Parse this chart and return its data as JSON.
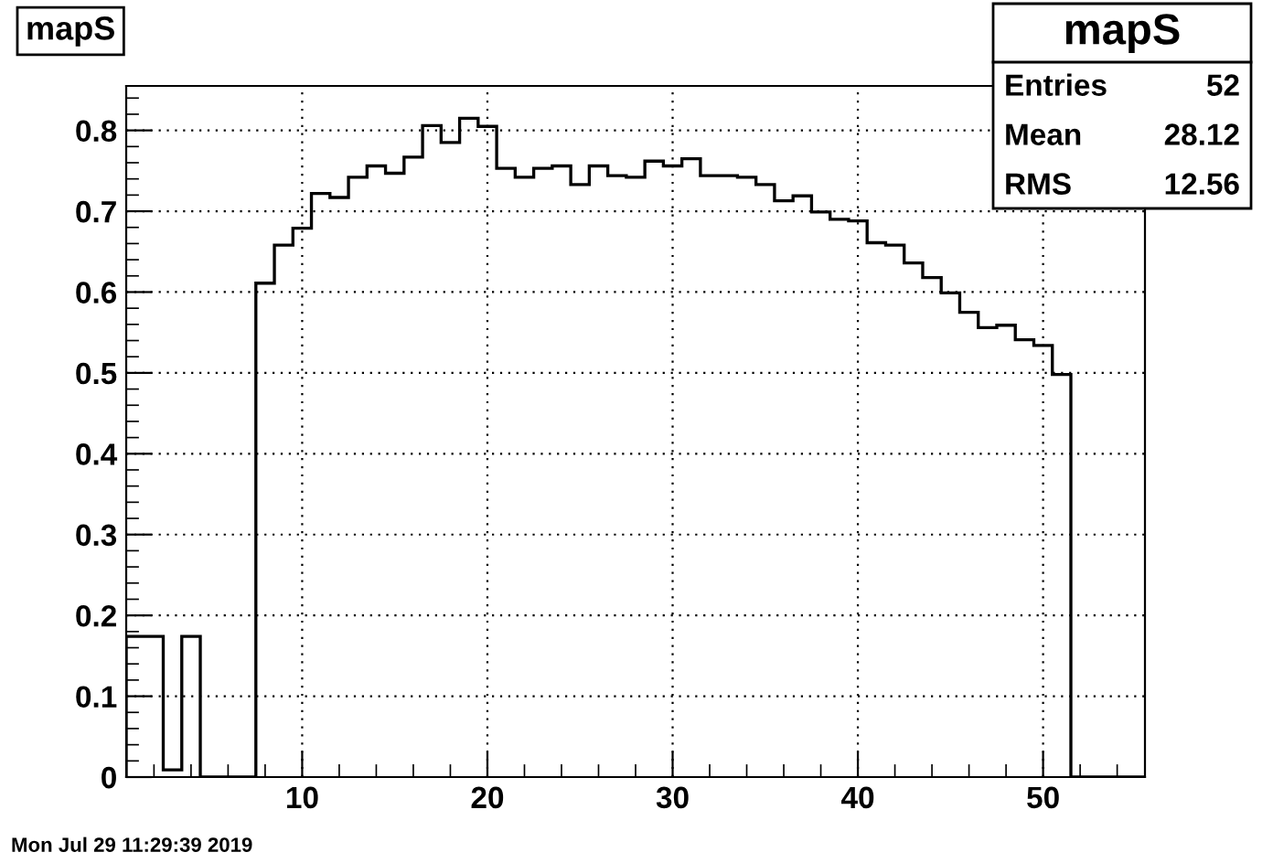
{
  "chart_data": {
    "type": "histogram",
    "title": "mapS",
    "bins": [
      0.5,
      1.5,
      2.5,
      3.5,
      4.5,
      5.5,
      6.5,
      7.5,
      8.5,
      9.5,
      10.5,
      11.5,
      12.5,
      13.5,
      14.5,
      15.5,
      16.5,
      17.5,
      18.5,
      19.5,
      20.5,
      21.5,
      22.5,
      23.5,
      24.5,
      25.5,
      26.5,
      27.5,
      28.5,
      29.5,
      30.5,
      31.5,
      32.5,
      33.5,
      34.5,
      35.5,
      36.5,
      37.5,
      38.5,
      39.5,
      40.5,
      41.5,
      42.5,
      43.5,
      44.5,
      45.5,
      46.5,
      47.5,
      48.5,
      49.5,
      50.5,
      51.5,
      52.5,
      53.5,
      54.5,
      55.5
    ],
    "values": [
      0.174,
      0.174,
      0.009,
      0.174,
      0,
      0,
      0,
      0.611,
      0.658,
      0.679,
      0.722,
      0.717,
      0.742,
      0.756,
      0.747,
      0.767,
      0.806,
      0.785,
      0.815,
      0.805,
      0.753,
      0.742,
      0.753,
      0.756,
      0.733,
      0.756,
      0.744,
      0.742,
      0.762,
      0.756,
      0.765,
      0.744,
      0.744,
      0.742,
      0.733,
      0.713,
      0.719,
      0.699,
      0.69,
      0.688,
      0.661,
      0.658,
      0.636,
      0.618,
      0.599,
      0.575,
      0.556,
      0.559,
      0.541,
      0.534,
      0.498,
      0,
      0,
      0,
      0
    ],
    "color": "#000000",
    "xlim": [
      0.5,
      55.5
    ],
    "xticks": [
      10,
      20,
      30,
      40,
      50
    ],
    "ylim": [
      0,
      0.855
    ],
    "yticks": [
      0,
      0.1,
      0.2,
      0.3,
      0.4,
      0.5,
      0.6,
      0.7,
      0.8
    ],
    "grid": true,
    "annotations": [
      "mapS",
      "Entries",
      "52",
      "Mean",
      "28.12",
      "RMS",
      "12.56",
      "Mon Jul 29 11:29:39 2019"
    ]
  }
}
